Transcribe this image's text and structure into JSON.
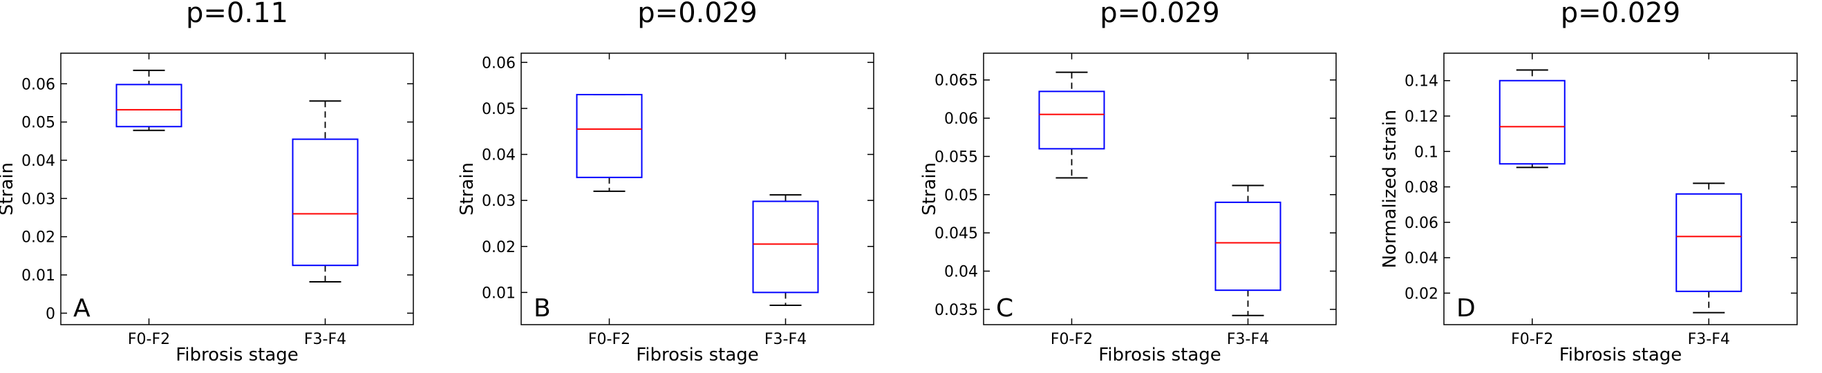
{
  "chart_data": [
    {
      "type": "box",
      "panel_label": "A",
      "title": "p=0.11",
      "xlabel": "Fibrosis stage",
      "ylabel": "Strain",
      "categories": [
        "F0-F2",
        "F3-F4"
      ],
      "ylim": [
        -0.003,
        0.068
      ],
      "yticks": [
        0,
        0.01,
        0.02,
        0.03,
        0.04,
        0.05,
        0.06
      ],
      "yticklabels": [
        "0",
        "0.01",
        "0.02",
        "0.03",
        "0.04",
        "0.05",
        "0.06"
      ],
      "boxes": [
        {
          "category": "F0-F2",
          "whisker_low": 0.0478,
          "q1": 0.0488,
          "median": 0.0532,
          "q3": 0.0598,
          "whisker_high": 0.0635
        },
        {
          "category": "F3-F4",
          "whisker_low": 0.0082,
          "q1": 0.0125,
          "median": 0.026,
          "q3": 0.0455,
          "whisker_high": 0.0555
        }
      ]
    },
    {
      "type": "box",
      "panel_label": "B",
      "title": "p=0.029",
      "xlabel": "Fibrosis stage",
      "ylabel": "Strain",
      "categories": [
        "F0-F2",
        "F3-F4"
      ],
      "ylim": [
        0.003,
        0.062
      ],
      "yticks": [
        0.01,
        0.02,
        0.03,
        0.04,
        0.05,
        0.06
      ],
      "yticklabels": [
        "0.01",
        "0.02",
        "0.03",
        "0.04",
        "0.05",
        "0.06"
      ],
      "boxes": [
        {
          "category": "F0-F2",
          "whisker_low": 0.032,
          "q1": 0.035,
          "median": 0.0455,
          "q3": 0.053,
          "whisker_high": 0.053
        },
        {
          "category": "F3-F4",
          "whisker_low": 0.0072,
          "q1": 0.01,
          "median": 0.0205,
          "q3": 0.0298,
          "whisker_high": 0.0312
        }
      ]
    },
    {
      "type": "box",
      "panel_label": "C",
      "title": "p=0.029",
      "xlabel": "Fibrosis stage",
      "ylabel": "Strain",
      "categories": [
        "F0-F2",
        "F3-F4"
      ],
      "ylim": [
        0.033,
        0.0685
      ],
      "yticks": [
        0.035,
        0.04,
        0.045,
        0.05,
        0.055,
        0.06,
        0.065
      ],
      "yticklabels": [
        "0.035",
        "0.04",
        "0.045",
        "0.05",
        "0.055",
        "0.06",
        "0.065"
      ],
      "boxes": [
        {
          "category": "F0-F2",
          "whisker_low": 0.0522,
          "q1": 0.056,
          "median": 0.0605,
          "q3": 0.0635,
          "whisker_high": 0.066
        },
        {
          "category": "F3-F4",
          "whisker_low": 0.0342,
          "q1": 0.0375,
          "median": 0.0437,
          "q3": 0.049,
          "whisker_high": 0.0512
        }
      ]
    },
    {
      "type": "box",
      "panel_label": "D",
      "title": "p=0.029",
      "xlabel": "Fibrosis stage",
      "ylabel": "Normalized strain",
      "categories": [
        "F0-F2",
        "F3-F4"
      ],
      "ylim": [
        0.0022,
        0.1555
      ],
      "yticks": [
        0.02,
        0.04,
        0.06,
        0.08,
        0.1,
        0.12,
        0.14
      ],
      "yticklabels": [
        "0.02",
        "0.04",
        "0.06",
        "0.08",
        "0.1",
        "0.12",
        "0.14"
      ],
      "boxes": [
        {
          "category": "F0-F2",
          "whisker_low": 0.091,
          "q1": 0.093,
          "median": 0.114,
          "q3": 0.14,
          "whisker_high": 0.146
        },
        {
          "category": "F3-F4",
          "whisker_low": 0.009,
          "q1": 0.021,
          "median": 0.052,
          "q3": 0.076,
          "whisker_high": 0.082
        }
      ]
    }
  ]
}
